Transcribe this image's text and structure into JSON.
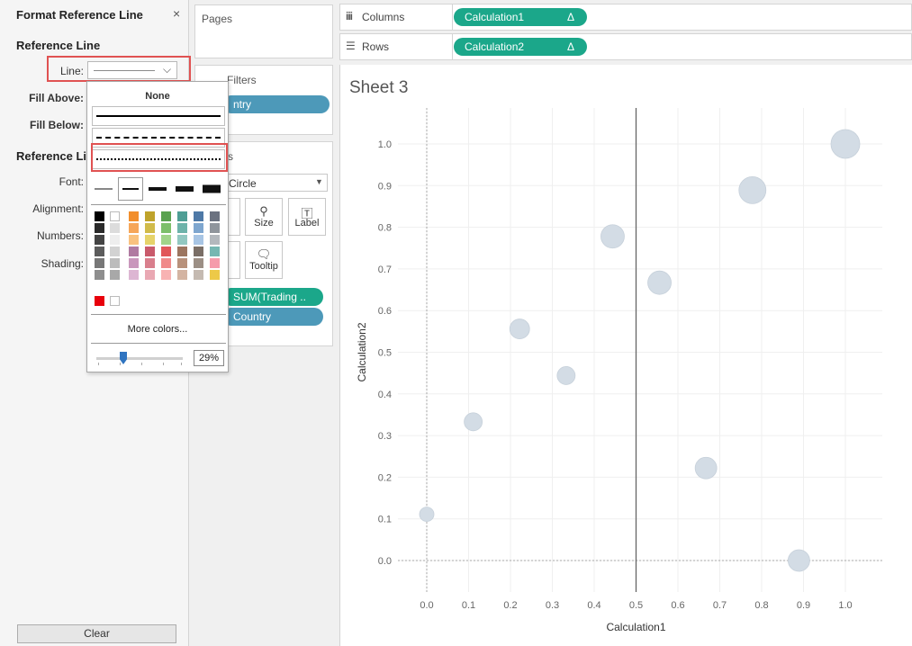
{
  "format_panel": {
    "title": "Format Reference Line",
    "close": "×",
    "section1": "Reference Line",
    "line_label": "Line:",
    "fill_above": "Fill Above:",
    "fill_below": "Fill Below:",
    "section2": "Reference Li",
    "font": "Font:",
    "alignment": "Alignment:",
    "numbers": "Numbers:",
    "shading": "Shading:",
    "clear": "Clear"
  },
  "line_popup": {
    "none": "None",
    "styles": [
      "solid",
      "dashed",
      "dotted"
    ],
    "selected_style": "dotted",
    "widths": [
      "w1",
      "w2",
      "w3",
      "w4",
      "w5"
    ],
    "selected_width": "w2",
    "colors": [
      [
        "#000000",
        "#ffffff",
        "#f28e2b",
        "#bfa32b",
        "#59a14f",
        "#4e9e95",
        "#4e79a7",
        "#6b7280"
      ],
      [
        "#2a2a2a",
        "#dcdcdc",
        "#f6a659",
        "#d1bb4a",
        "#7cbf6a",
        "#6db3aa",
        "#7ea6cf",
        "#8f959c"
      ],
      [
        "#444444",
        "#eeeeee",
        "#f9c27f",
        "#e6d36a",
        "#a1d48a",
        "#92c8c1",
        "#a8c5e4",
        "#b3b8bd"
      ],
      [
        "#5c5c5c",
        "#d2d2d2",
        "#b07aa1",
        "#c95a6b",
        "#e15759",
        "#9c755f",
        "#7a6e66",
        "#76b7b2"
      ],
      [
        "#777777",
        "#bcbcbc",
        "#c997bc",
        "#d97f8d",
        "#f08a8a",
        "#b8917b",
        "#9c8f85",
        "#f59bab"
      ],
      [
        "#8e8e8e",
        "#a8a8a8",
        "#ddb6d3",
        "#e9a8b3",
        "#f8b3b3",
        "#d4b4a2",
        "#c5bab1",
        "#edc948"
      ]
    ],
    "recent_colors": [
      "#e8000b",
      "#ffffff"
    ],
    "more_colors": "More colors...",
    "opacity": "29%",
    "opacity_fraction": 0.29
  },
  "shelves": {
    "pages": "Pages",
    "filters": "Filters",
    "filter_pill": "ntry",
    "marks": "s",
    "mark_type": "Circle",
    "color_btn": "r",
    "size_btn": "Size",
    "label_btn": "Label",
    "detail_btn": "il",
    "tooltip_btn": "Tooltip",
    "pill_size": "SUM(Trading ..",
    "pill_country": "Country",
    "columns": "Columns",
    "rows": "Rows",
    "columns_pill": "Calculation1",
    "rows_pill": "Calculation2",
    "delta": "Δ"
  },
  "sheet": {
    "title": "Sheet 3"
  },
  "colors": {
    "green": "#1ba78a",
    "blue": "#4d99b9",
    "highlight": "#e05252",
    "mark": "#d3dce5"
  },
  "chart_data": {
    "type": "scatter",
    "xlabel": "Calculation1",
    "ylabel": "Calculation2",
    "xlim": [
      -0.07,
      1.08
    ],
    "ylim": [
      -0.08,
      1.08
    ],
    "xticks": [
      "0.0",
      "0.1",
      "0.2",
      "0.3",
      "0.4",
      "0.5",
      "0.6",
      "0.7",
      "0.8",
      "0.9",
      "1.0"
    ],
    "yticks": [
      "0.0",
      "0.1",
      "0.2",
      "0.3",
      "0.4",
      "0.5",
      "0.6",
      "0.7",
      "0.8",
      "0.9",
      "1.0"
    ],
    "reference_line_x": 0.5,
    "grid": true,
    "points": [
      {
        "x": 0.0,
        "y": 0.111,
        "size": 8
      },
      {
        "x": 0.111,
        "y": 0.333,
        "size": 10
      },
      {
        "x": 0.222,
        "y": 0.556,
        "size": 11
      },
      {
        "x": 0.333,
        "y": 0.444,
        "size": 10
      },
      {
        "x": 0.444,
        "y": 0.778,
        "size": 13
      },
      {
        "x": 0.556,
        "y": 0.667,
        "size": 13
      },
      {
        "x": 0.667,
        "y": 0.222,
        "size": 12
      },
      {
        "x": 0.778,
        "y": 0.889,
        "size": 15
      },
      {
        "x": 0.889,
        "y": 0.0,
        "size": 12
      },
      {
        "x": 1.0,
        "y": 1.0,
        "size": 16
      }
    ]
  }
}
